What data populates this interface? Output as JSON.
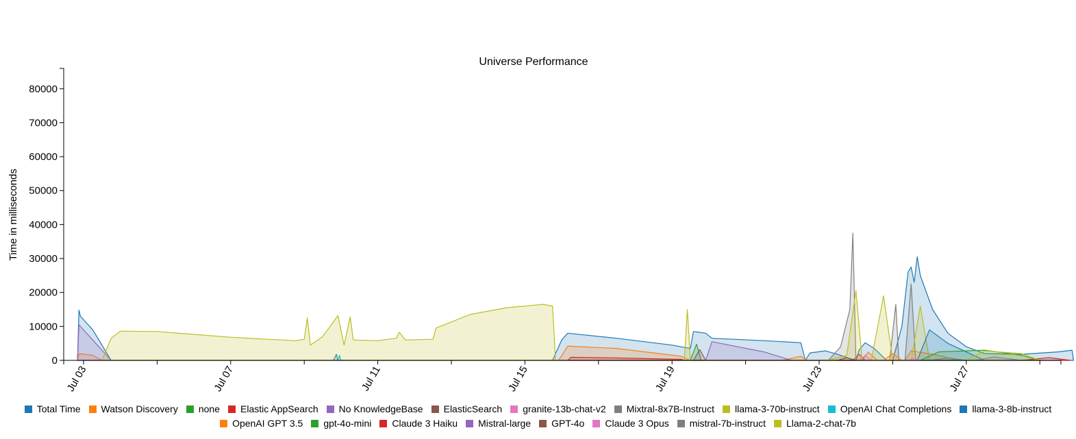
{
  "chart_data": {
    "type": "area",
    "title": "Universe Performance",
    "xlabel": "",
    "ylabel": "Time in milliseconds",
    "xlim": [
      "2024-07-02",
      "2024-07-30"
    ],
    "ylim": [
      0,
      86000
    ],
    "y_ticks": [
      0,
      10000,
      20000,
      30000,
      40000,
      50000,
      60000,
      70000,
      80000
    ],
    "x_ticks": [
      {
        "date": "2024-07-03",
        "label": "Jul 03"
      },
      {
        "date": "2024-07-07",
        "label": "Jul 07"
      },
      {
        "date": "2024-07-11",
        "label": "Jul 11"
      },
      {
        "date": "2024-07-15",
        "label": "Jul 15"
      },
      {
        "date": "2024-07-19",
        "label": "Jul 19"
      },
      {
        "date": "2024-07-23",
        "label": "Jul 23"
      },
      {
        "date": "2024-07-27",
        "label": "Jul 27"
      }
    ],
    "x_minor_ticks": [
      "2024-07-05",
      "2024-07-09",
      "2024-07-13",
      "2024-07-17",
      "2024-07-21",
      "2024-07-25",
      "2024-07-29"
    ],
    "legend_position": "bottom",
    "legend_rows": [
      [
        "Total Time",
        "Watson Discovery",
        "none",
        "Elastic AppSearch",
        "No KnowledgeBase",
        "ElasticSearch",
        "granite-13b-chat-v2",
        "Mixtral-8x7B-Instruct",
        "llama-3-70b-instruct",
        "OpenAI Chat Completions",
        "llama-3-8b-instruct"
      ],
      [
        "OpenAI GPT 3.5",
        "gpt-4o-mini",
        "Claude 3 Haiku",
        "Mistral-large",
        "GPT-4o",
        "Claude 3 Opus",
        "mistral-7b-instruct",
        "Llama-2-chat-7b"
      ]
    ],
    "series": [
      {
        "name": "Total Time",
        "color": "#1f77b4",
        "points": [
          [
            "2024-07-02T20:00",
            0
          ],
          [
            "2024-07-02T21:00",
            14800
          ],
          [
            "2024-07-02T22:00",
            13000
          ],
          [
            "2024-07-03T06:00",
            9000
          ],
          [
            "2024-07-03T18:00",
            0
          ],
          [
            "2024-07-09T19:00",
            0
          ],
          [
            "2024-07-09T21:00",
            1800
          ],
          [
            "2024-07-09T22:00",
            0
          ],
          [
            "2024-07-15T18:00",
            0
          ],
          [
            "2024-07-16T00:00",
            6000
          ],
          [
            "2024-07-16T04:00",
            8000
          ],
          [
            "2024-07-17T12:00",
            6500
          ],
          [
            "2024-07-19T00:00",
            4500
          ],
          [
            "2024-07-19T12:00",
            3500
          ],
          [
            "2024-07-19T14:00",
            8500
          ],
          [
            "2024-07-19T22:00",
            8000
          ],
          [
            "2024-07-20T02:00",
            6500
          ],
          [
            "2024-07-21T12:00",
            5800
          ],
          [
            "2024-07-22T12:00",
            5200
          ],
          [
            "2024-07-22T15:00",
            0
          ],
          [
            "2024-07-22T18:00",
            2200
          ],
          [
            "2024-07-23T04:00",
            2800
          ],
          [
            "2024-07-23T12:00",
            1800
          ],
          [
            "2024-07-23T20:00",
            500
          ],
          [
            "2024-07-24T00:00",
            0
          ],
          [
            "2024-07-24T02:00",
            3000
          ],
          [
            "2024-07-24T06:00",
            5200
          ],
          [
            "2024-07-24T12:00",
            3500
          ],
          [
            "2024-07-24T20:00",
            0
          ],
          [
            "2024-07-25T00:00",
            0
          ],
          [
            "2024-07-25T06:00",
            10000
          ],
          [
            "2024-07-25T10:00",
            26000
          ],
          [
            "2024-07-25T12:00",
            27500
          ],
          [
            "2024-07-25T14:00",
            23000
          ],
          [
            "2024-07-25T16:00",
            30500
          ],
          [
            "2024-07-25T18:00",
            25000
          ],
          [
            "2024-07-26T02:00",
            15000
          ],
          [
            "2024-07-26T12:00",
            8000
          ],
          [
            "2024-07-27T00:00",
            4000
          ],
          [
            "2024-07-27T12:00",
            2000
          ],
          [
            "2024-07-28T12:00",
            1800
          ],
          [
            "2024-07-29T12:00",
            2500
          ],
          [
            "2024-07-29T21:00",
            3000
          ],
          [
            "2024-07-29T22:00",
            0
          ]
        ]
      },
      {
        "name": "Watson Discovery",
        "color": "#ff7f0e",
        "points": [
          [
            "2024-07-02T20:00",
            0
          ],
          [
            "2024-07-02T21:00",
            2000
          ],
          [
            "2024-07-03T06:00",
            1500
          ],
          [
            "2024-07-03T12:00",
            0
          ],
          [
            "2024-07-15T22:00",
            0
          ],
          [
            "2024-07-16T04:00",
            4200
          ],
          [
            "2024-07-17T12:00",
            3500
          ],
          [
            "2024-07-19T06:00",
            1200
          ],
          [
            "2024-07-19T12:00",
            0
          ],
          [
            "2024-07-22T00:00",
            0
          ],
          [
            "2024-07-22T12:00",
            1200
          ],
          [
            "2024-07-22T16:00",
            0
          ],
          [
            "2024-07-24T04:00",
            0
          ],
          [
            "2024-07-24T08:00",
            2400
          ],
          [
            "2024-07-24T14:00",
            0
          ],
          [
            "2024-07-25T08:00",
            0
          ],
          [
            "2024-07-25T12:00",
            2800
          ],
          [
            "2024-07-26T06:00",
            1500
          ],
          [
            "2024-07-26T18:00",
            0
          ]
        ]
      },
      {
        "name": "none",
        "color": "#2ca02c",
        "points": [
          [
            "2024-07-19T12:00",
            0
          ],
          [
            "2024-07-19T16:00",
            4800
          ],
          [
            "2024-07-19T19:00",
            0
          ]
        ]
      },
      {
        "name": "Elastic AppSearch",
        "color": "#d62728",
        "points": [
          [
            "2024-07-16T04:00",
            0
          ],
          [
            "2024-07-16T06:00",
            900
          ],
          [
            "2024-07-17T12:00",
            700
          ],
          [
            "2024-07-19T06:00",
            300
          ],
          [
            "2024-07-19T08:00",
            0
          ],
          [
            "2024-07-23T22:00",
            0
          ],
          [
            "2024-07-24T02:00",
            1800
          ],
          [
            "2024-07-24T06:00",
            0
          ]
        ]
      },
      {
        "name": "No KnowledgeBase",
        "color": "#9467bd",
        "points": [
          [
            "2024-07-02T20:00",
            0
          ],
          [
            "2024-07-02T21:00",
            10500
          ],
          [
            "2024-07-03T06:00",
            6000
          ],
          [
            "2024-07-03T18:00",
            0
          ],
          [
            "2024-07-19T22:00",
            0
          ],
          [
            "2024-07-20T02:00",
            5500
          ],
          [
            "2024-07-21T12:00",
            2500
          ],
          [
            "2024-07-22T06:00",
            0
          ]
        ]
      },
      {
        "name": "ElasticSearch",
        "color": "#8c564b",
        "points": [
          [
            "2024-07-19T14:00",
            0
          ],
          [
            "2024-07-19T18:00",
            3200
          ],
          [
            "2024-07-19T22:00",
            0
          ]
        ]
      },
      {
        "name": "granite-13b-chat-v2",
        "color": "#e377c2",
        "points": [
          [
            "2024-07-24T02:00",
            0
          ],
          [
            "2024-07-24T06:00",
            1500
          ],
          [
            "2024-07-24T10:00",
            0
          ]
        ]
      },
      {
        "name": "Mixtral-8x7B-Instruct",
        "color": "#7f7f7f",
        "points": [
          [
            "2024-07-23T06:00",
            0
          ],
          [
            "2024-07-23T14:00",
            4000
          ],
          [
            "2024-07-23T20:00",
            15000
          ],
          [
            "2024-07-23T22:00",
            37500
          ],
          [
            "2024-07-24T00:00",
            0
          ],
          [
            "2024-07-24T22:00",
            0
          ],
          [
            "2024-07-25T02:00",
            16500
          ],
          [
            "2024-07-25T04:00",
            0
          ],
          [
            "2024-07-25T08:00",
            0
          ],
          [
            "2024-07-25T12:00",
            22500
          ],
          [
            "2024-07-25T15:00",
            0
          ]
        ]
      },
      {
        "name": "llama-3-70b-instruct",
        "color": "#bcbd22",
        "points": [
          [
            "2024-07-03T12:00",
            0
          ],
          [
            "2024-07-03T18:00",
            6500
          ],
          [
            "2024-07-04T00:00",
            8600
          ],
          [
            "2024-07-05T00:00",
            8500
          ],
          [
            "2024-07-07T00:00",
            6800
          ],
          [
            "2024-07-08T18:00",
            5800
          ],
          [
            "2024-07-09T00:00",
            6200
          ],
          [
            "2024-07-09T02:00",
            12500
          ],
          [
            "2024-07-09T04:00",
            4500
          ],
          [
            "2024-07-09T12:00",
            7000
          ],
          [
            "2024-07-09T22:00",
            13200
          ],
          [
            "2024-07-10T02:00",
            4500
          ],
          [
            "2024-07-10T06:00",
            12800
          ],
          [
            "2024-07-10T08:00",
            6000
          ],
          [
            "2024-07-11T00:00",
            5800
          ],
          [
            "2024-07-11T12:00",
            6500
          ],
          [
            "2024-07-11T14:00",
            8300
          ],
          [
            "2024-07-11T18:00",
            6000
          ],
          [
            "2024-07-12T12:00",
            6200
          ],
          [
            "2024-07-12T14:00",
            9500
          ],
          [
            "2024-07-13T12:00",
            13500
          ],
          [
            "2024-07-14T12:00",
            15500
          ],
          [
            "2024-07-15T12:00",
            16500
          ],
          [
            "2024-07-15T18:00",
            16000
          ],
          [
            "2024-07-15T20:00",
            0
          ],
          [
            "2024-07-19T08:00",
            0
          ],
          [
            "2024-07-19T10:00",
            15000
          ],
          [
            "2024-07-19T12:00",
            0
          ],
          [
            "2024-07-23T06:00",
            0
          ],
          [
            "2024-07-23T18:00",
            1500
          ],
          [
            "2024-07-24T00:00",
            20500
          ],
          [
            "2024-07-24T04:00",
            0
          ],
          [
            "2024-07-24T10:00",
            0
          ],
          [
            "2024-07-24T18:00",
            19000
          ],
          [
            "2024-07-25T00:00",
            0
          ],
          [
            "2024-07-25T12:00",
            0
          ],
          [
            "2024-07-25T18:00",
            16000
          ],
          [
            "2024-07-26T00:00",
            0
          ]
        ]
      },
      {
        "name": "OpenAI Chat Completions",
        "color": "#17becf",
        "points": [
          [
            "2024-07-09T22:00",
            0
          ],
          [
            "2024-07-09T23:00",
            1500
          ],
          [
            "2024-07-10T00:00",
            0
          ]
        ]
      },
      {
        "name": "llama-3-8b-instruct",
        "color": "#1f77b4",
        "points": [
          [
            "2024-07-25T16:00",
            0
          ],
          [
            "2024-07-26T00:00",
            9000
          ],
          [
            "2024-07-26T12:00",
            5000
          ],
          [
            "2024-07-27T00:00",
            2500
          ],
          [
            "2024-07-27T12:00",
            0
          ]
        ]
      },
      {
        "name": "OpenAI GPT 3.5",
        "color": "#ff7f0e",
        "points": [
          [
            "2024-07-24T18:00",
            0
          ],
          [
            "2024-07-25T00:00",
            2000
          ],
          [
            "2024-07-25T06:00",
            0
          ]
        ]
      },
      {
        "name": "gpt-4o-mini",
        "color": "#2ca02c",
        "points": [
          [
            "2024-07-25T18:00",
            0
          ],
          [
            "2024-07-26T06:00",
            2500
          ],
          [
            "2024-07-27T12:00",
            3000
          ],
          [
            "2024-07-28T12:00",
            1500
          ],
          [
            "2024-07-29T00:00",
            0
          ]
        ]
      },
      {
        "name": "Claude 3 Haiku",
        "color": "#d62728",
        "points": [
          [
            "2024-07-28T12:00",
            0
          ],
          [
            "2024-07-29T06:00",
            800
          ],
          [
            "2024-07-29T20:00",
            0
          ]
        ]
      },
      {
        "name": "Mistral-large",
        "color": "#9467bd",
        "points": [
          [
            "2024-07-27T06:00",
            0
          ],
          [
            "2024-07-27T18:00",
            1000
          ],
          [
            "2024-07-28T12:00",
            0
          ]
        ]
      },
      {
        "name": "GPT-4o",
        "color": "#8c564b",
        "points": [
          [
            "2024-07-23T12:00",
            0
          ],
          [
            "2024-07-23T18:00",
            800
          ],
          [
            "2024-07-24T00:00",
            0
          ]
        ]
      },
      {
        "name": "Claude 3 Opus",
        "color": "#e377c2",
        "points": [
          [
            "2024-07-25T10:00",
            0
          ],
          [
            "2024-07-25T14:00",
            600
          ],
          [
            "2024-07-25T18:00",
            0
          ]
        ]
      },
      {
        "name": "mistral-7b-instruct",
        "color": "#7f7f7f",
        "points": [
          [
            "2024-07-26T00:00",
            0
          ],
          [
            "2024-07-26T12:00",
            700
          ],
          [
            "2024-07-27T00:00",
            0
          ]
        ]
      },
      {
        "name": "Llama-2-chat-7b",
        "color": "#bcbd22",
        "points": [
          [
            "2024-07-27T00:00",
            0
          ],
          [
            "2024-07-27T12:00",
            2800
          ],
          [
            "2024-07-28T12:00",
            2000
          ],
          [
            "2024-07-29T00:00",
            0
          ]
        ]
      }
    ]
  }
}
